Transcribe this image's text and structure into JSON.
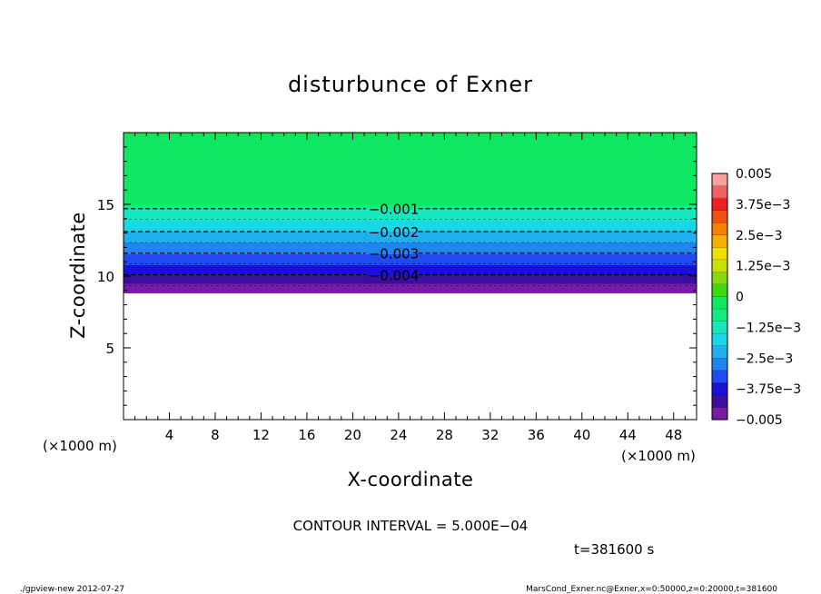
{
  "chart_data": {
    "type": "heatmap",
    "title": "disturbunce of Exner",
    "xlabel": "X-coordinate",
    "ylabel": "Z-coordinate",
    "x_unit": "(×1000 m)",
    "y_unit": "(×1000 m)",
    "xlim": [
      0,
      50
    ],
    "ylim": [
      0,
      20
    ],
    "x_ticks": [
      4,
      8,
      12,
      16,
      20,
      24,
      28,
      32,
      36,
      40,
      44,
      48
    ],
    "y_ticks": [
      5,
      10,
      15
    ],
    "grid": false,
    "contours": [
      {
        "label": "−0.001",
        "value": -0.001,
        "z": 14.7
      },
      {
        "label": "−0.002",
        "value": -0.002,
        "z": 13.1
      },
      {
        "label": "−0.003",
        "value": -0.003,
        "z": 11.6
      },
      {
        "label": "−0.004",
        "value": -0.004,
        "z": 10.1
      }
    ],
    "field_profile": [
      {
        "z": 20.0,
        "value": 0.0
      },
      {
        "z": 15.2,
        "value": -0.0002
      },
      {
        "z": 14.7,
        "value": -0.001
      },
      {
        "z": 13.1,
        "value": -0.002
      },
      {
        "z": 11.6,
        "value": -0.003
      },
      {
        "z": 10.1,
        "value": -0.004
      },
      {
        "z": 8.9,
        "value": -0.005
      }
    ],
    "no_data_below_z": 8.8,
    "colorbar": {
      "min": -0.005,
      "max": 0.005,
      "tick_labels": [
        "0.005",
        "3.75e−3",
        "2.5e−3",
        "1.25e−3",
        "0",
        "−1.25e−3",
        "−2.5e−3",
        "−3.75e−3",
        "−0.005"
      ],
      "tick_values": [
        0.005,
        0.00375,
        0.0025,
        0.00125,
        0,
        -0.00125,
        -0.0025,
        -0.00375,
        -0.005
      ],
      "colors": [
        "#7a1aa8",
        "#3a0fa0",
        "#1a10d8",
        "#1e4cf0",
        "#1f86f0",
        "#1fb0f0",
        "#18d8e8",
        "#14e8c0",
        "#10ec80",
        "#0ee860",
        "#3cd810",
        "#88d810",
        "#c8e000",
        "#f0e000",
        "#f8b000",
        "#f88000",
        "#f05010",
        "#f02020",
        "#f06060",
        "#f8a0a0"
      ]
    }
  },
  "contour_interval": "CONTOUR INTERVAL = 5.000E−04",
  "time_label": "t=381600 s",
  "footer_left": "./gpview-new   2012-07-27",
  "footer_right": "MarsCond_Exner.nc@Exner,x=0:50000,z=0:20000,t=381600"
}
